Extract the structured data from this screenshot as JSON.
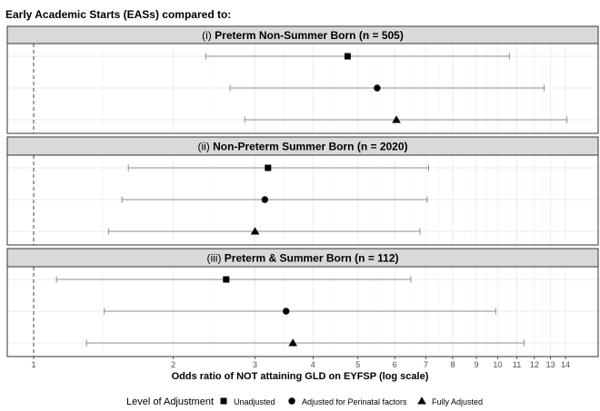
{
  "figure": {
    "title": "Early Academic Starts (EASs) compared to:",
    "xlabel": "Odds ratio of NOT attaining GLD on EYFSP (log scale)"
  },
  "legend": {
    "title": "Level of Adjustment",
    "items": [
      {
        "label": "Unadjusted",
        "shape": "square"
      },
      {
        "label": "Adjusted for Perinatal factors",
        "shape": "circle"
      },
      {
        "label": "Fully Adjusted",
        "shape": "triangle"
      }
    ]
  },
  "colors": {
    "points": "#000000",
    "ci_lines": "#8c8c8c",
    "strip_background": "#d9d9d9",
    "grid": "#ebebeb"
  },
  "chart_data": {
    "type": "scatter",
    "subtype": "forest plot with confidence intervals",
    "x_scale": "log",
    "xlim": [
      0.95,
      16
    ],
    "x_ticks": [
      1,
      2,
      3,
      4,
      5,
      6,
      7,
      8,
      9,
      10,
      11,
      12,
      13,
      14
    ],
    "reference_line": 1,
    "grid": true,
    "legend_position": "bottom",
    "panels": [
      {
        "prefix": "(i)",
        "title": "Preterm Non-Summer Born (n = 505)",
        "estimates": [
          {
            "level": "Unadjusted",
            "or": 4.75,
            "ci_low": 2.35,
            "ci_high": 10.6
          },
          {
            "level": "Adjusted for Perinatal factors",
            "or": 5.5,
            "ci_low": 2.65,
            "ci_high": 12.6
          },
          {
            "level": "Fully Adjusted",
            "or": 6.05,
            "ci_low": 2.85,
            "ci_high": 14.1
          }
        ]
      },
      {
        "prefix": "(ii)",
        "title": "Non-Preterm Summer Born (n = 2020)",
        "estimates": [
          {
            "level": "Unadjusted",
            "or": 3.2,
            "ci_low": 1.6,
            "ci_high": 7.1
          },
          {
            "level": "Adjusted for Perinatal factors",
            "or": 3.15,
            "ci_low": 1.55,
            "ci_high": 7.05
          },
          {
            "level": "Fully Adjusted",
            "or": 3.0,
            "ci_low": 1.45,
            "ci_high": 6.8
          }
        ]
      },
      {
        "prefix": "(iii)",
        "title": "Preterm & Summer Born (n = 112)",
        "estimates": [
          {
            "level": "Unadjusted",
            "or": 2.6,
            "ci_low": 1.12,
            "ci_high": 6.5
          },
          {
            "level": "Adjusted for Perinatal factors",
            "or": 3.5,
            "ci_low": 1.42,
            "ci_high": 9.9
          },
          {
            "level": "Fully Adjusted",
            "or": 3.62,
            "ci_low": 1.3,
            "ci_high": 11.4
          }
        ]
      }
    ]
  }
}
